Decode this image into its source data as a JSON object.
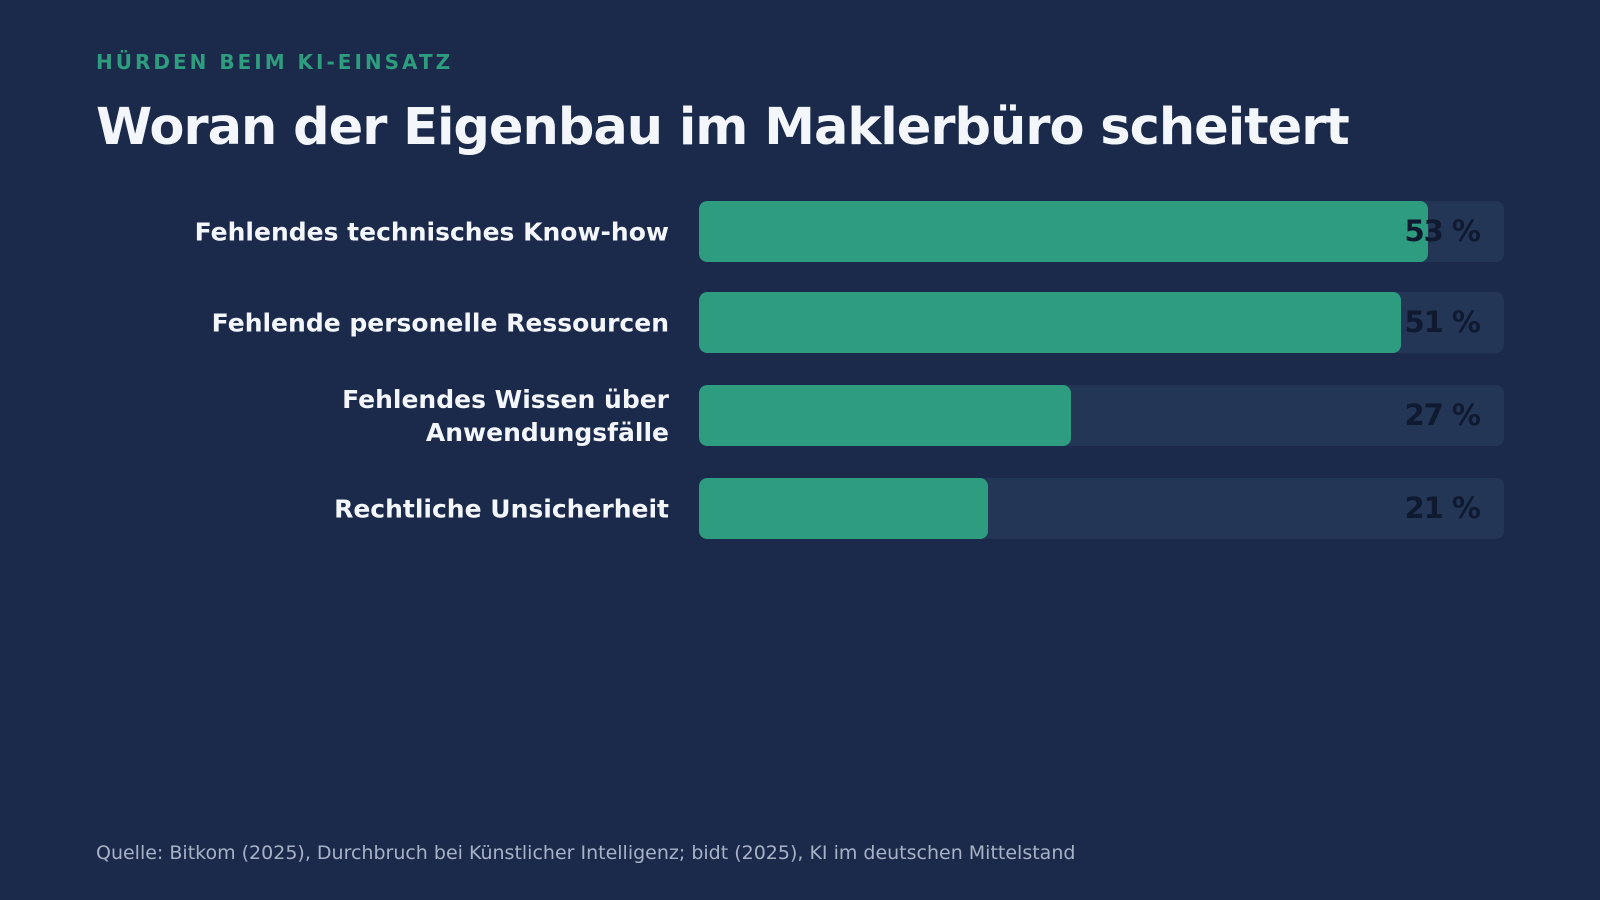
{
  "eyebrow": "HÜRDEN BEIM KI-EINSATZ",
  "title": "Woran der Eigenbau im Maklerbüro scheitert",
  "source": "Quelle: Bitkom (2025), Durchbruch bei Künstlicher Intelligenz; bidt (2025), KI im deutschen Mittelstand",
  "colors": {
    "background": "#1b2a4a",
    "bar": "#2e9c7e",
    "track": "#243656",
    "eyebrow": "#2e9c7e",
    "title": "#f3f6fb",
    "value": "#0f1a30",
    "source": "#a6b2c6"
  },
  "chart_data": {
    "type": "bar",
    "orientation": "horizontal",
    "unit": "%",
    "categories": [
      "Fehlendes technisches Know-how",
      "Fehlende personelle Ressourcen",
      "Fehlendes Wissen über Anwendungsfälle",
      "Rechtliche Unsicherheit"
    ],
    "values": [
      53,
      51,
      27,
      21
    ],
    "value_labels": [
      "53 %",
      "51 %",
      "27 %",
      "21 %"
    ],
    "xlim": [
      0,
      58.5
    ],
    "grid": false,
    "legend": "none"
  }
}
